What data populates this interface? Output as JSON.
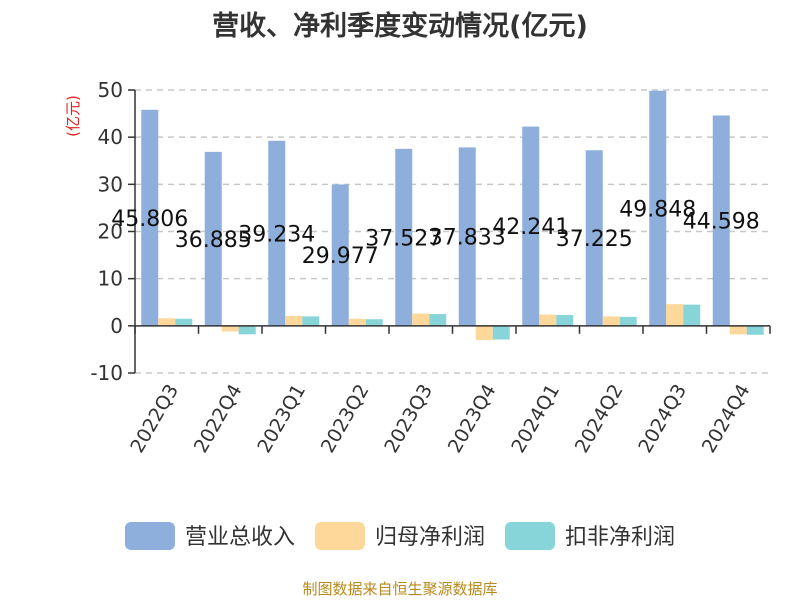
{
  "chart_data": {
    "type": "bar",
    "title": "营收、净利季度变动情况(亿元)",
    "ylabel": "(亿元)",
    "categories": [
      "2022Q3",
      "2022Q4",
      "2023Q1",
      "2023Q2",
      "2023Q3",
      "2023Q4",
      "2024Q1",
      "2024Q2",
      "2024Q3",
      "2024Q4"
    ],
    "ylim": [
      -10,
      50
    ],
    "yticks": [
      -10,
      0,
      10,
      20,
      30,
      40,
      50
    ],
    "grid": true,
    "legend_position": "bottom",
    "series": [
      {
        "name": "营业总收入",
        "color": "#8eaedb",
        "values": [
          45.806,
          36.885,
          39.234,
          29.977,
          37.527,
          37.833,
          42.241,
          37.225,
          49.848,
          44.598
        ],
        "labels": [
          "45.806",
          "36.885",
          "39.234",
          "29.977",
          "37.527",
          "37.833",
          "42.241",
          "37.225",
          "49.848",
          "44.598"
        ]
      },
      {
        "name": "归母净利润",
        "color": "#fdd89a",
        "values": [
          1.6,
          -1.2,
          2.1,
          1.5,
          2.6,
          -3.0,
          2.4,
          2.0,
          4.6,
          -1.8
        ]
      },
      {
        "name": "扣非净利润",
        "color": "#87d5d8",
        "values": [
          1.5,
          -1.8,
          2.0,
          1.4,
          2.5,
          -2.9,
          2.3,
          1.9,
          4.5,
          -1.9
        ]
      }
    ]
  },
  "source": "制图数据来自恒生聚源数据库"
}
